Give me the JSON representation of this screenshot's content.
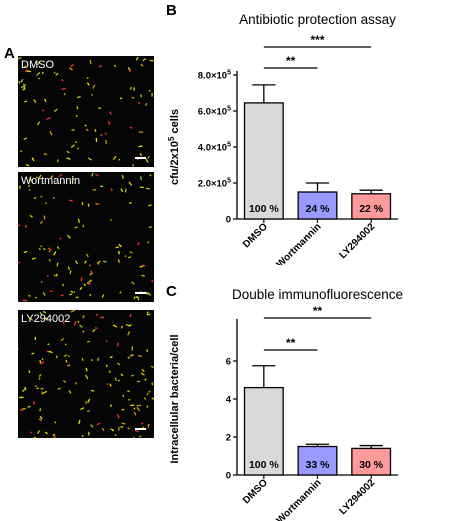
{
  "panels": {
    "A": {
      "letter": "A",
      "images": [
        {
          "label": "DMSO"
        },
        {
          "label": "Wortmannin"
        },
        {
          "label": "LY294002"
        }
      ]
    },
    "B": {
      "letter": "B"
    },
    "C": {
      "letter": "C"
    }
  },
  "chart_data": [
    {
      "type": "bar",
      "title": "Antibiotic protection assay",
      "ylabel_base": "cfu/2x10",
      "ylabel_exp": "5",
      "ylabel_tail": " cells",
      "ylim": [
        0,
        800000
      ],
      "yticks": [
        {
          "value": 0,
          "label": "0"
        },
        {
          "value": 200000,
          "mantissa": "2.0×10",
          "exp": "5"
        },
        {
          "value": 400000,
          "mantissa": "4.0×10",
          "exp": "5"
        },
        {
          "value": 600000,
          "mantissa": "6.0×10",
          "exp": "5"
        },
        {
          "value": 800000,
          "mantissa": "8.0×10",
          "exp": "5"
        }
      ],
      "categories": [
        "DMSO",
        "Wortmannin",
        "LY294002"
      ],
      "values": [
        645000,
        150000,
        140000
      ],
      "errors": [
        100000,
        50000,
        20000
      ],
      "bar_labels": [
        "100 %",
        "24 %",
        "22 %"
      ],
      "colors": [
        "#d9d9d9",
        "#9999ff",
        "#ff9a9a"
      ],
      "significance": [
        {
          "from": 0,
          "to": 1,
          "label": "**"
        },
        {
          "from": 0,
          "to": 2,
          "label": "***"
        }
      ]
    },
    {
      "type": "bar",
      "title": "Double immunofluorescence",
      "ylabel": "Intracellular bacteria/cell",
      "ylim": [
        0,
        8
      ],
      "yticks": [
        {
          "value": 0,
          "label": "0"
        },
        {
          "value": 2,
          "label": "2"
        },
        {
          "value": 4,
          "label": "4"
        },
        {
          "value": 6,
          "label": "6"
        }
      ],
      "categories": [
        "DMSO",
        "Wortmannin",
        "LY294002"
      ],
      "values": [
        4.6,
        1.5,
        1.4
      ],
      "errors": [
        1.15,
        0.12,
        0.15
      ],
      "bar_labels": [
        "100 %",
        "33 %",
        "30 %"
      ],
      "colors": [
        "#d9d9d9",
        "#9999ff",
        "#ff9a9a"
      ],
      "significance": [
        {
          "from": 0,
          "to": 1,
          "label": "**"
        },
        {
          "from": 0,
          "to": 2,
          "label": "**"
        }
      ]
    }
  ]
}
